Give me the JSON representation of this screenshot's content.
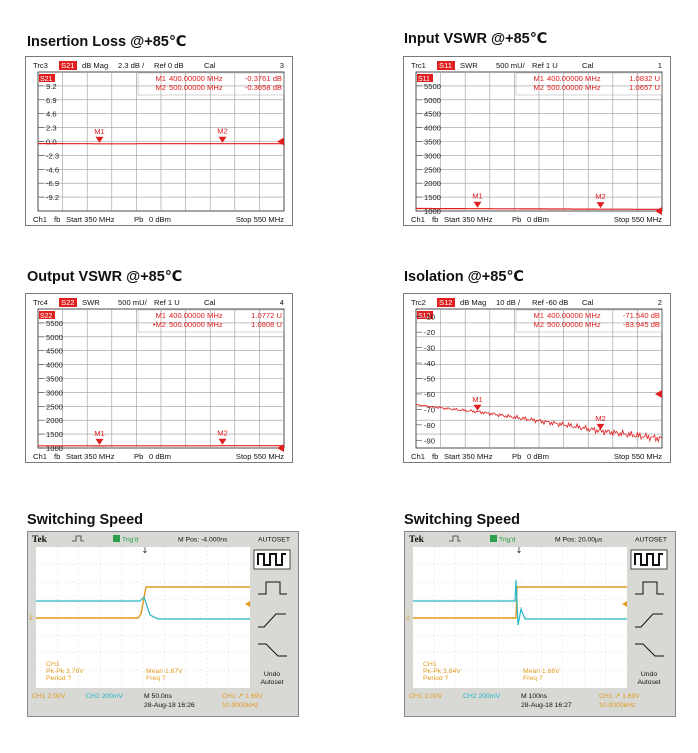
{
  "titles": {
    "insertion": "Insertion Loss @+85℃",
    "input_vswr": "Input VSWR @+85℃",
    "output_vswr": "Output VSWR @+85℃",
    "isolation": "Isolation @+85℃",
    "switch_left": "Switching Speed",
    "switch_right": "Switching Speed"
  },
  "chart_data": [
    {
      "id": "insertion",
      "type": "line",
      "title": "Insertion Loss @+85℃",
      "trace": "Trc3",
      "param": "S21",
      "format": "dB Mag",
      "scale": "2.3 dB /",
      "ref": "Ref 0 dB",
      "cal": "Cal",
      "chan_num": "3",
      "ymax": 11.5,
      "ymin": -11.5,
      "ref_value": 0,
      "ticks": [
        "9.2",
        "6.9",
        "4.6",
        "2.3",
        "0.0",
        "-2.3",
        "-4.6",
        "-6.9",
        "-9.2"
      ],
      "tick_values": [
        9.2,
        6.9,
        4.6,
        2.3,
        0,
        -2.3,
        -4.6,
        -6.9,
        -9.2
      ],
      "x_start": 350,
      "x_stop": 550,
      "x": [
        350,
        400,
        450,
        500,
        550
      ],
      "y": [
        -0.34,
        -0.376,
        -0.37,
        -0.366,
        -0.36
      ],
      "markers": [
        {
          "name": "M1",
          "label": "M1",
          "freq": "400.00000 MHz",
          "value": "-0.3761 dB",
          "x": 400,
          "y": -0.376
        },
        {
          "name": "M2",
          "label": "M2",
          "freq": "500.00000 MHz",
          "value": "-0.3658 dB",
          "x": 500,
          "y": -0.366
        }
      ],
      "footer": {
        "ch": "Ch1",
        "fb": "fb",
        "start": "Start 350 MHz",
        "pb": "Pb",
        "power": "0 dBm",
        "stop": "Stop 550 MHz"
      }
    },
    {
      "id": "input_vswr",
      "type": "line",
      "title": "Input VSWR @+85℃",
      "trace": "Trc1",
      "param": "S11",
      "format": "SWR",
      "scale": "500 mU/",
      "ref": "Ref 1 U",
      "cal": "Cal",
      "chan_num": "1",
      "ymax": 6.0,
      "ymin": 1.0,
      "ref_value": 1,
      "ticks": [
        "5500",
        "5000",
        "4500",
        "4000",
        "3500",
        "3000",
        "2500",
        "2000",
        "1500",
        "1000"
      ],
      "tick_values": [
        5.5,
        5.0,
        4.5,
        4.0,
        3.5,
        3.0,
        2.5,
        2.0,
        1.5,
        1.0
      ],
      "x_start": 350,
      "x_stop": 550,
      "x": [
        350,
        400,
        450,
        500,
        550
      ],
      "y": [
        1.09,
        1.083,
        1.075,
        1.066,
        1.06
      ],
      "markers": [
        {
          "name": "M1",
          "label": "M1",
          "freq": "400.00000 MHz",
          "value": "1.0832 U",
          "x": 400,
          "y": 1.083
        },
        {
          "name": "M2",
          "label": "M2",
          "freq": "500.00000 MHz",
          "value": "1.0657 U",
          "x": 500,
          "y": 1.066
        }
      ],
      "footer": {
        "ch": "Ch1",
        "fb": "fb",
        "start": "Start 350 MHz",
        "pb": "Pb",
        "power": "0 dBm",
        "stop": "Stop 550 MHz"
      }
    },
    {
      "id": "output_vswr",
      "type": "line",
      "title": "Output VSWR @+85℃",
      "trace": "Trc4",
      "param": "S22",
      "format": "SWR",
      "scale": "500 mU/",
      "ref": "Ref 1 U",
      "cal": "Cal",
      "chan_num": "4",
      "ymax": 6.0,
      "ymin": 1.0,
      "ref_value": 1,
      "ticks": [
        "5500",
        "5000",
        "4500",
        "4000",
        "3500",
        "3000",
        "2500",
        "2000",
        "1500",
        "1000"
      ],
      "tick_values": [
        5.5,
        5.0,
        4.5,
        4.0,
        3.5,
        3.0,
        2.5,
        2.0,
        1.5,
        1.0
      ],
      "x_start": 350,
      "x_stop": 550,
      "x": [
        350,
        400,
        450,
        500,
        550
      ],
      "y": [
        1.08,
        1.077,
        1.08,
        1.081,
        1.083
      ],
      "markers": [
        {
          "name": "M1",
          "label": "M1",
          "freq": "400.00000 MHz",
          "value": "1.0772 U",
          "x": 400,
          "y": 1.077
        },
        {
          "name": "M2",
          "label": "•M2",
          "freq": "500.00000 MHz",
          "value": "1.0808 U",
          "x": 500,
          "y": 1.081
        }
      ],
      "footer": {
        "ch": "Ch1",
        "fb": "fb",
        "start": "Start 350 MHz",
        "pb": "Pb",
        "power": "0 dBm",
        "stop": "Stop 550 MHz"
      }
    },
    {
      "id": "isolation",
      "type": "line",
      "title": "Isolation @+85℃",
      "trace": "Trc2",
      "param": "S12",
      "format": "dB Mag",
      "scale": "10 dB /",
      "ref": "Ref -60 dB",
      "cal": "Cal",
      "chan_num": "2",
      "ymax": -5,
      "ymin": -95,
      "ref_value": -60,
      "ticks": [
        "-10",
        "-20",
        "-30",
        "-40",
        "-50",
        "-60",
        "-70",
        "-80",
        "-90"
      ],
      "tick_values": [
        -10,
        -20,
        -30,
        -40,
        -50,
        -60,
        -70,
        -80,
        -90
      ],
      "x_start": 350,
      "x_stop": 550,
      "x": [
        350,
        375,
        400,
        425,
        450,
        475,
        500,
        525,
        550
      ],
      "y": [
        -67,
        -69.5,
        -71.5,
        -74.5,
        -77.5,
        -80.5,
        -84,
        -86.5,
        -89
      ],
      "markers": [
        {
          "name": "M1",
          "label": "M1",
          "freq": "400.00000 MHz",
          "value": "-71.540 dB",
          "x": 400,
          "y": -71.54
        },
        {
          "name": "M2",
          "label": "M2",
          "freq": "500.00000 MHz",
          "value": "-83.945 dB",
          "x": 500,
          "y": -83.945
        }
      ],
      "footer": {
        "ch": "Ch1",
        "fb": "fb",
        "start": "Start 350 MHz",
        "pb": "Pb",
        "power": "0 dBm",
        "stop": "Stop 550 MHz"
      }
    }
  ],
  "scopes": [
    {
      "id": "switch_left",
      "brand": "Tek",
      "trig": "Trig'd",
      "mpos": "M Pos: -4.000ns",
      "autoset": "AUTOSET",
      "ch1_label": "CH1",
      "pkpk": "Pk-Pk 3.76V",
      "period": "Period ?",
      "mean": "Mean 1.67V",
      "freq": "Freq ?",
      "ch1_scale": "CH1  2.00V",
      "ch2_scale": "CH2  200mV",
      "time": "M 50.0ns",
      "trig_info": "CH1 ↗ 1.69V",
      "date": "28-Aug-18 16:26",
      "trig_freq": "10.0000kHz",
      "undo": "Undo",
      "undo2": "Autoset",
      "ch2_marker": "2"
    },
    {
      "id": "switch_right",
      "brand": "Tek",
      "trig": "Trig'd",
      "mpos": "M Pos: 20.00µs",
      "autoset": "AUTOSET",
      "ch1_label": "CH1",
      "pkpk": "Pk-Pk 3.84V",
      "period": "Period ?",
      "mean": "Mean 1.66V",
      "freq": "Freq ?",
      "ch1_scale": "CH1  2.00V",
      "ch2_scale": "CH2  200mV",
      "time": "M 100ns",
      "trig_info": "CH1 ↗ 1.69V",
      "date": "28-Aug-18 16:27",
      "trig_freq": "10.0000kHz",
      "undo": "Undo",
      "undo2": "Autoset",
      "ch2_marker": "2"
    }
  ],
  "colors": {
    "trace_red": "#e02020",
    "ch1_orange": "#e39b1e",
    "ch2_cyan": "#20b8c8",
    "grid": "#9a9a9a"
  }
}
